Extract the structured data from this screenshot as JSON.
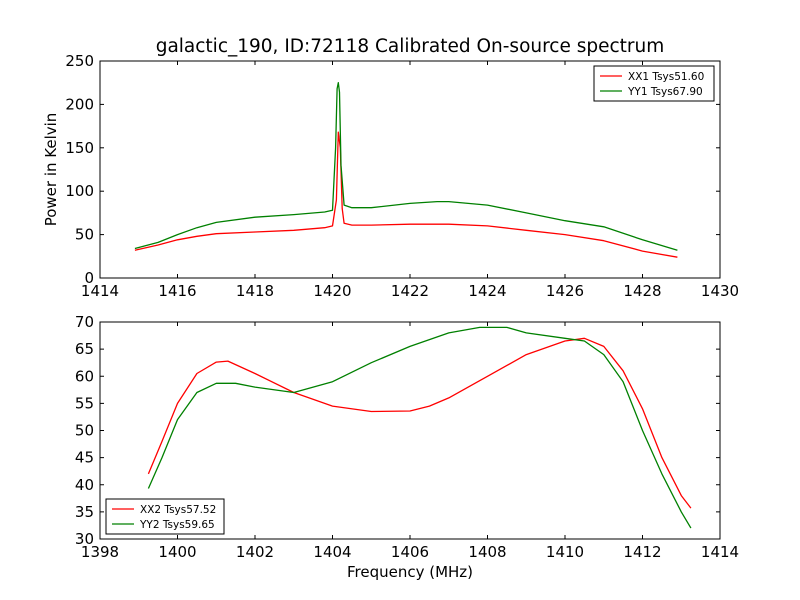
{
  "figure": {
    "title": "galactic_190, ID:72118 Calibrated On-source spectrum"
  },
  "chart_data": [
    {
      "type": "line",
      "title": "galactic_190, ID:72118 Calibrated On-source spectrum",
      "xlabel": "",
      "ylabel": "Power in Kelvin",
      "xlim": [
        1414,
        1430
      ],
      "ylim": [
        0,
        250
      ],
      "xticks": [
        "1414",
        "1416",
        "1418",
        "1420",
        "1422",
        "1424",
        "1426",
        "1428",
        "1430"
      ],
      "yticks": [
        "0",
        "50",
        "100",
        "150",
        "200",
        "250"
      ],
      "legend_position": "upper right",
      "grid": false,
      "series": [
        {
          "name": "XX1 Tsys51.60",
          "color": "#ff0000",
          "points": [
            [
              1414.9,
              32
            ],
            [
              1415.5,
              38
            ],
            [
              1416,
              44
            ],
            [
              1416.5,
              48
            ],
            [
              1417,
              51
            ],
            [
              1418,
              53
            ],
            [
              1419,
              55
            ],
            [
              1419.8,
              58
            ],
            [
              1420.0,
              60
            ],
            [
              1420.1,
              90
            ],
            [
              1420.15,
              168
            ],
            [
              1420.2,
              150
            ],
            [
              1420.25,
              80
            ],
            [
              1420.3,
              63
            ],
            [
              1420.5,
              61
            ],
            [
              1421,
              61
            ],
            [
              1422,
              62
            ],
            [
              1423,
              62
            ],
            [
              1424,
              60
            ],
            [
              1425,
              55
            ],
            [
              1426,
              50
            ],
            [
              1427,
              43
            ],
            [
              1428,
              31
            ],
            [
              1428.9,
              24
            ]
          ]
        },
        {
          "name": "YY1 Tsys67.90",
          "color": "#008000",
          "points": [
            [
              1414.9,
              34
            ],
            [
              1415.5,
              41
            ],
            [
              1416,
              50
            ],
            [
              1416.5,
              58
            ],
            [
              1417,
              64
            ],
            [
              1418,
              70
            ],
            [
              1419,
              73
            ],
            [
              1419.8,
              76
            ],
            [
              1420.0,
              78
            ],
            [
              1420.08,
              150
            ],
            [
              1420.12,
              218
            ],
            [
              1420.15,
              225
            ],
            [
              1420.18,
              214
            ],
            [
              1420.22,
              130
            ],
            [
              1420.3,
              84
            ],
            [
              1420.5,
              81
            ],
            [
              1421,
              81
            ],
            [
              1422,
              86
            ],
            [
              1422.7,
              88
            ],
            [
              1423,
              88
            ],
            [
              1424,
              84
            ],
            [
              1425,
              75
            ],
            [
              1426,
              66
            ],
            [
              1427,
              59
            ],
            [
              1428,
              44
            ],
            [
              1428.9,
              32
            ]
          ]
        }
      ]
    },
    {
      "type": "line",
      "title": "",
      "xlabel": "Frequency (MHz)",
      "ylabel": "",
      "xlim": [
        1398,
        1414
      ],
      "ylim": [
        30,
        70
      ],
      "xticks": [
        "1398",
        "1400",
        "1402",
        "1404",
        "1406",
        "1408",
        "1410",
        "1412",
        "1414"
      ],
      "yticks": [
        "30",
        "35",
        "40",
        "45",
        "50",
        "55",
        "60",
        "65",
        "70"
      ],
      "legend_position": "lower left",
      "grid": false,
      "series": [
        {
          "name": "XX2 Tsys57.52",
          "color": "#ff0000",
          "points": [
            [
              1399.25,
              42
            ],
            [
              1399.6,
              48
            ],
            [
              1400,
              55
            ],
            [
              1400.5,
              60.5
            ],
            [
              1401,
              62.6
            ],
            [
              1401.3,
              62.8
            ],
            [
              1402,
              60.5
            ],
            [
              1403,
              57
            ],
            [
              1404,
              54.5
            ],
            [
              1405,
              53.5
            ],
            [
              1406,
              53.6
            ],
            [
              1406.5,
              54.5
            ],
            [
              1407,
              56
            ],
            [
              1408,
              60
            ],
            [
              1409,
              64
            ],
            [
              1410,
              66.5
            ],
            [
              1410.5,
              67
            ],
            [
              1411,
              65.5
            ],
            [
              1411.5,
              61
            ],
            [
              1412,
              54
            ],
            [
              1412.5,
              45
            ],
            [
              1413,
              38
            ],
            [
              1413.25,
              35.7
            ]
          ]
        },
        {
          "name": "YY2 Tsys59.65",
          "color": "#008000",
          "points": [
            [
              1399.25,
              39.3
            ],
            [
              1399.6,
              45
            ],
            [
              1400,
              52
            ],
            [
              1400.5,
              57
            ],
            [
              1401,
              58.7
            ],
            [
              1401.5,
              58.7
            ],
            [
              1402,
              58
            ],
            [
              1403,
              57
            ],
            [
              1404,
              59
            ],
            [
              1405,
              62.5
            ],
            [
              1406,
              65.5
            ],
            [
              1407,
              68
            ],
            [
              1407.8,
              69
            ],
            [
              1408.5,
              69
            ],
            [
              1409,
              68
            ],
            [
              1410,
              67
            ],
            [
              1410.5,
              66.5
            ],
            [
              1411,
              64
            ],
            [
              1411.5,
              59
            ],
            [
              1412,
              50
            ],
            [
              1412.5,
              42
            ],
            [
              1413,
              35
            ],
            [
              1413.25,
              32
            ]
          ]
        }
      ]
    }
  ]
}
